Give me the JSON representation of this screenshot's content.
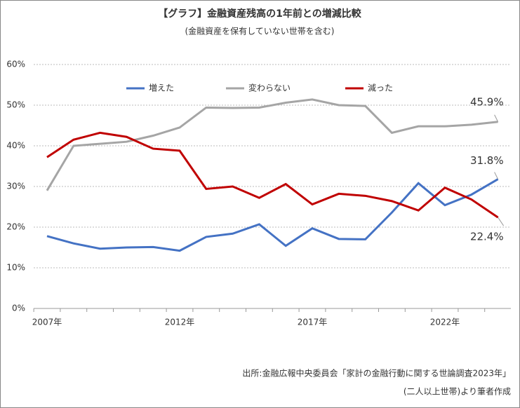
{
  "chart_data": {
    "type": "line",
    "title": "【グラフ】金融資産残高の1年前との増減比較",
    "subtitle": "(金融資産を保有していない世帯を含む)",
    "source": [
      "出所:金融広報中央委員会「家計の金融行動に関する世論調査2023年」",
      "(二人以上世帯)より筆者作成"
    ],
    "categories": [
      "2007年",
      null,
      null,
      null,
      null,
      "2012年",
      null,
      null,
      null,
      null,
      "2017年",
      null,
      null,
      null,
      null,
      "2022年",
      null,
      null
    ],
    "series": [
      {
        "name": "増えた",
        "color": "#4472c4",
        "values": [
          17.8,
          16.0,
          14.7,
          15.0,
          15.1,
          14.2,
          17.6,
          18.4,
          20.7,
          15.4,
          19.7,
          17.1,
          17.0,
          23.6,
          30.8,
          25.4,
          28.0,
          31.8
        ],
        "value_labels": [
          null,
          null,
          null,
          null,
          null,
          null,
          null,
          null,
          null,
          null,
          null,
          null,
          null,
          null,
          null,
          null,
          null,
          "31.8%"
        ]
      },
      {
        "name": "変わらない",
        "color": "#a5a5a5",
        "values": [
          29.0,
          40.0,
          40.5,
          41.0,
          42.5,
          44.5,
          49.4,
          49.3,
          49.4,
          50.6,
          51.4,
          50.0,
          49.8,
          43.2,
          44.8,
          44.8,
          45.2,
          45.9
        ],
        "value_labels": [
          null,
          null,
          null,
          null,
          null,
          null,
          null,
          null,
          null,
          null,
          null,
          null,
          null,
          null,
          null,
          null,
          null,
          "45.9%"
        ]
      },
      {
        "name": "減った",
        "color": "#c00000",
        "values": [
          37.2,
          41.5,
          43.2,
          42.2,
          39.3,
          38.8,
          29.4,
          30.0,
          27.2,
          30.6,
          25.6,
          28.2,
          27.7,
          26.4,
          24.1,
          29.7,
          26.8,
          22.4
        ],
        "value_labels": [
          null,
          null,
          null,
          null,
          null,
          null,
          null,
          null,
          null,
          null,
          null,
          null,
          null,
          null,
          null,
          null,
          null,
          "22.4%"
        ]
      }
    ],
    "ylim": [
      0,
      60
    ],
    "yticks": [
      {
        "value": 0,
        "label": "0%"
      },
      {
        "value": 10,
        "label": "10%"
      },
      {
        "value": 20,
        "label": "20%"
      },
      {
        "value": 30,
        "label": "30%"
      },
      {
        "value": 40,
        "label": "40%"
      },
      {
        "value": 50,
        "label": "50%"
      },
      {
        "value": 60,
        "label": "60%"
      }
    ],
    "grid": true,
    "legend": "top"
  }
}
